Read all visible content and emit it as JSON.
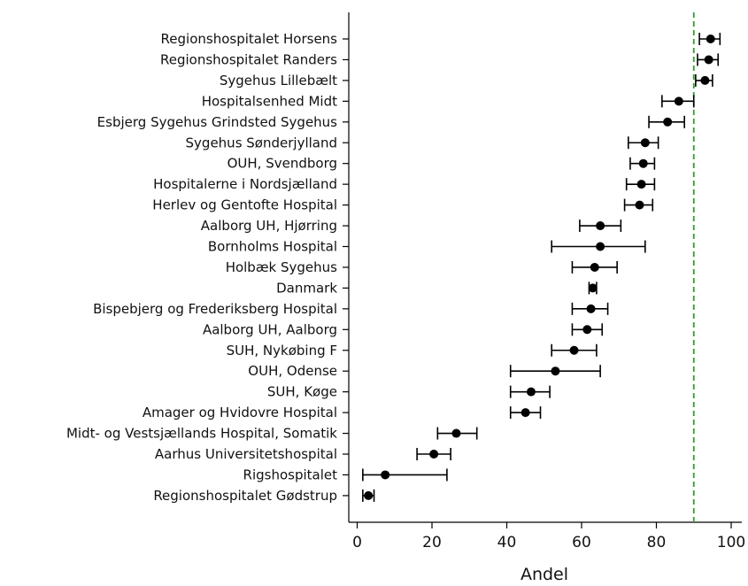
{
  "chart_data": {
    "type": "scatter",
    "xlabel": "Andel",
    "ylabel": "",
    "xlim": [
      -2,
      102
    ],
    "xticks": [
      0,
      20,
      40,
      60,
      80,
      100
    ],
    "grid": false,
    "reference_line": {
      "x": 90,
      "color": "#2ca02c",
      "style": "dashed"
    },
    "point_color": "#000000",
    "categories": [
      "Regionshospitalet Horsens",
      "Regionshospitalet Randers",
      "Sygehus Lillebælt",
      "Hospitalsenhed Midt",
      "Esbjerg Sygehus Grindsted Sygehus",
      "Sygehus Sønderjylland",
      "OUH, Svendborg",
      "Hospitalerne i Nordsjælland",
      "Herlev og Gentofte Hospital",
      "Aalborg UH, Hjørring",
      "Bornholms Hospital",
      "Holbæk Sygehus",
      "Danmark",
      "Bispebjerg og Frederiksberg Hospital",
      "Aalborg UH, Aalborg",
      "SUH, Nykøbing F",
      "OUH, Odense",
      "SUH, Køge",
      "Amager og Hvidovre Hospital",
      "Midt- og Vestsjællands Hospital, Somatik",
      "Aarhus Universitetshospital",
      "Rigshospitalet",
      "Regionshospitalet Gødstrup"
    ],
    "values": [
      94.5,
      94,
      93,
      86,
      83,
      77,
      76.5,
      76,
      75.5,
      65,
      65,
      63.5,
      63,
      62.5,
      61.5,
      58,
      53,
      46.5,
      45,
      26.5,
      20.5,
      7.5,
      3
    ],
    "lower": [
      91.5,
      91,
      90.5,
      81.5,
      78,
      72.5,
      73,
      72,
      71.5,
      59.5,
      52,
      57.5,
      62,
      57.5,
      57.5,
      52,
      41,
      41,
      41,
      21.5,
      16,
      1.5,
      1.5
    ],
    "upper": [
      97,
      96.5,
      95,
      90,
      87.5,
      80.5,
      79.5,
      79.5,
      79,
      70.5,
      77,
      69.5,
      64,
      67,
      65.5,
      64,
      65,
      51.5,
      49,
      32,
      25,
      24,
      4.5
    ]
  }
}
